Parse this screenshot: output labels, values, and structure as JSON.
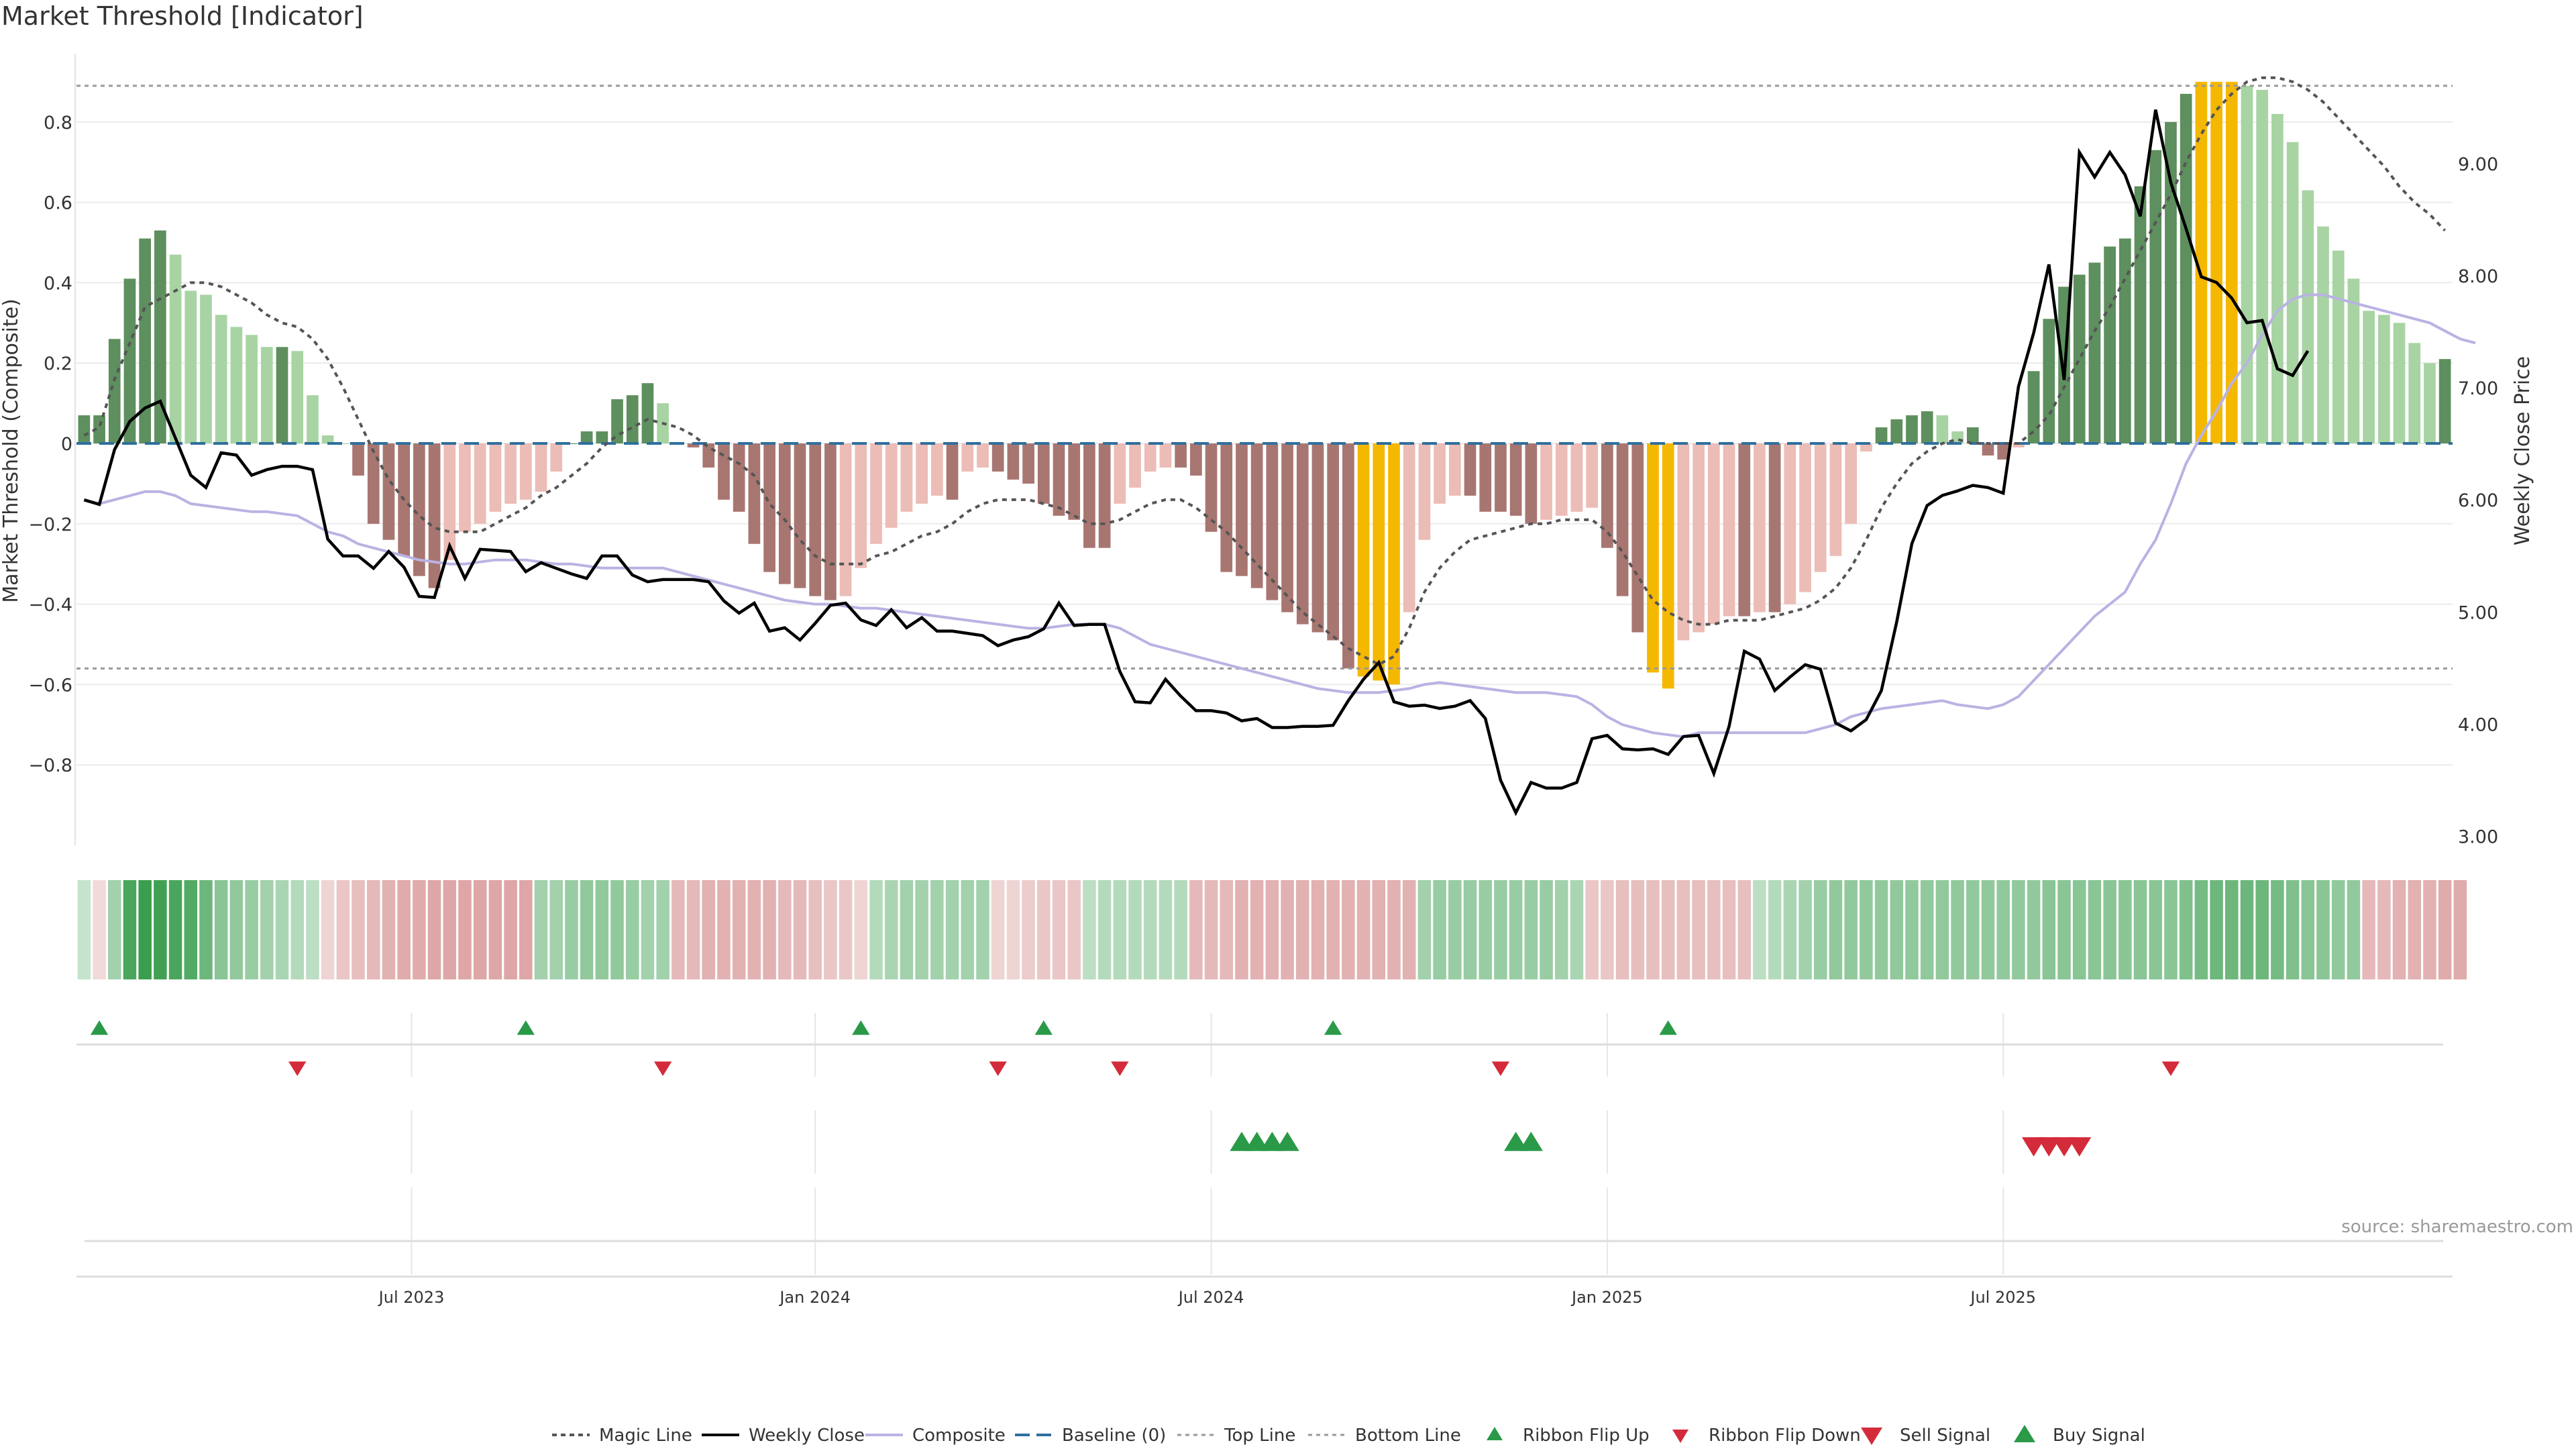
{
  "chart_data": {
    "type": "bar",
    "title": "Market Threshold [Indicator]",
    "source": "source: sharemaestro.com",
    "ylabel_left": "Market Threshold (Composite)",
    "ylabel_right": "Weekly Close Price",
    "y_left_ticks": [
      "−0.8",
      "−0.6",
      "−0.4",
      "−0.2",
      "0",
      "0.2",
      "0.4",
      "0.6",
      "0.8"
    ],
    "y_left_tick_values": [
      -0.8,
      -0.6,
      -0.4,
      -0.2,
      0,
      0.2,
      0.4,
      0.6,
      0.8
    ],
    "y_right_ticks": [
      "3.00",
      "4.00",
      "5.00",
      "6.00",
      "7.00",
      "8.00",
      "9.00"
    ],
    "y_right_tick_values": [
      3,
      4,
      5,
      6,
      7,
      8,
      9
    ],
    "ylim_left": [
      -1.0,
      0.97
    ],
    "ylim_right": [
      2.92,
      9.98
    ],
    "x_ticks": [
      "Jul 2023",
      "Jan 2024",
      "Jul 2024",
      "Jan 2025",
      "Jul 2025"
    ],
    "x_tick_week_index": [
      22,
      48.5,
      74.5,
      100.5,
      126.5
    ],
    "top_line": 0.89,
    "bottom_line": -0.56,
    "composite": [
      0.07,
      0.07,
      0.26,
      0.41,
      0.51,
      0.53,
      0.47,
      0.38,
      0.37,
      0.32,
      0.29,
      0.27,
      0.24,
      0.24,
      0.23,
      0.12,
      0.02,
      0,
      -0.08,
      -0.2,
      -0.24,
      -0.28,
      -0.33,
      -0.36,
      -0.29,
      -0.22,
      -0.2,
      -0.17,
      -0.15,
      -0.14,
      -0.12,
      -0.07,
      0,
      0.03,
      0.03,
      0.11,
      0.12,
      0.15,
      0.1,
      0,
      -0.01,
      -0.06,
      -0.14,
      -0.17,
      -0.25,
      -0.32,
      -0.35,
      -0.36,
      -0.38,
      -0.39,
      -0.38,
      -0.31,
      -0.25,
      -0.21,
      -0.17,
      -0.15,
      -0.13,
      -0.14,
      -0.07,
      -0.06,
      -0.07,
      -0.09,
      -0.1,
      -0.15,
      -0.18,
      -0.19,
      -0.26,
      -0.26,
      -0.15,
      -0.11,
      -0.07,
      -0.06,
      -0.06,
      -0.08,
      -0.22,
      -0.32,
      -0.33,
      -0.36,
      -0.39,
      -0.42,
      -0.45,
      -0.47,
      -0.49,
      -0.56,
      -0.58,
      -0.59,
      -0.6,
      -0.42,
      -0.24,
      -0.15,
      -0.13,
      -0.13,
      -0.17,
      -0.17,
      -0.18,
      -0.2,
      -0.19,
      -0.18,
      -0.17,
      -0.16,
      -0.26,
      -0.38,
      -0.47,
      -0.57,
      -0.61,
      -0.49,
      -0.47,
      -0.45,
      -0.43,
      -0.43,
      -0.42,
      -0.42,
      -0.4,
      -0.37,
      -0.32,
      -0.28,
      -0.2,
      -0.02,
      0.04,
      0.06,
      0.07,
      0.08,
      0.07,
      0.03,
      0.04,
      -0.03,
      -0.04,
      -0.01,
      0.18,
      0.31,
      0.39,
      0.42,
      0.45,
      0.49,
      0.51,
      0.64,
      0.73,
      0.8,
      0.87,
      0.9,
      0.9,
      0.9,
      0.89,
      0.88,
      0.82,
      0.75,
      0.63,
      0.54,
      0.48,
      0.41,
      0.33,
      0.32,
      0.3,
      0.25,
      0.2,
      0.21
    ],
    "weekly_close": [
      6.0,
      5.96,
      6.45,
      6.7,
      6.82,
      6.88,
      6.55,
      6.22,
      6.11,
      6.42,
      6.4,
      6.22,
      6.27,
      6.3,
      6.3,
      6.27,
      5.65,
      5.5,
      5.5,
      5.39,
      5.54,
      5.4,
      5.14,
      5.13,
      5.59,
      5.3,
      5.56,
      5.55,
      5.54,
      5.36,
      5.44,
      5.39,
      5.34,
      5.3,
      5.5,
      5.5,
      5.33,
      5.27,
      5.29,
      5.29,
      5.29,
      5.27,
      5.1,
      4.99,
      5.08,
      4.83,
      4.86,
      4.75,
      4.9,
      5.06,
      5.08,
      4.93,
      4.88,
      5.02,
      4.86,
      4.95,
      4.83,
      4.83,
      4.81,
      4.79,
      4.7,
      4.75,
      4.78,
      4.85,
      5.08,
      4.88,
      4.89,
      4.89,
      4.47,
      4.2,
      4.19,
      4.4,
      4.25,
      4.12,
      4.12,
      4.1,
      4.03,
      4.05,
      3.97,
      3.97,
      3.98,
      3.98,
      3.99,
      4.21,
      4.4,
      4.55,
      4.2,
      4.16,
      4.17,
      4.14,
      4.16,
      4.21,
      4.05,
      3.5,
      3.21,
      3.48,
      3.43,
      3.43,
      3.48,
      3.87,
      3.9,
      3.78,
      3.77,
      3.78,
      3.73,
      3.89,
      3.9,
      3.56,
      3.98,
      4.65,
      4.58,
      4.3,
      4.42,
      4.53,
      4.49,
      4.01,
      3.94,
      4.04,
      4.3,
      4.91,
      5.61,
      5.95,
      6.04,
      6.08,
      6.13,
      6.11,
      6.06,
      7.01,
      7.49,
      8.1,
      7.07,
      9.1,
      8.88,
      9.1,
      8.9,
      8.53,
      9.48,
      8.83,
      8.42,
      7.99,
      7.94,
      7.8,
      7.58,
      7.6,
      7.17,
      7.11,
      7.33
    ],
    "magic_line": [
      0.02,
      0.04,
      0.16,
      0.25,
      0.34,
      0.36,
      0.38,
      0.4,
      0.4,
      0.39,
      0.37,
      0.35,
      0.32,
      0.3,
      0.29,
      0.26,
      0.21,
      0.14,
      0.06,
      -0.02,
      -0.09,
      -0.14,
      -0.18,
      -0.21,
      -0.22,
      -0.22,
      -0.22,
      -0.2,
      -0.18,
      -0.16,
      -0.13,
      -0.11,
      -0.08,
      -0.05,
      -0.01,
      0.02,
      0.04,
      0.06,
      0.05,
      0.04,
      0.02,
      -0.01,
      -0.03,
      -0.05,
      -0.08,
      -0.15,
      -0.19,
      -0.24,
      -0.28,
      -0.3,
      -0.3,
      -0.3,
      -0.28,
      -0.27,
      -0.25,
      -0.23,
      -0.22,
      -0.2,
      -0.17,
      -0.15,
      -0.14,
      -0.14,
      -0.14,
      -0.15,
      -0.16,
      -0.18,
      -0.2,
      -0.2,
      -0.19,
      -0.17,
      -0.15,
      -0.14,
      -0.14,
      -0.16,
      -0.19,
      -0.22,
      -0.26,
      -0.3,
      -0.34,
      -0.38,
      -0.42,
      -0.45,
      -0.48,
      -0.51,
      -0.53,
      -0.55,
      -0.53,
      -0.46,
      -0.37,
      -0.31,
      -0.27,
      -0.24,
      -0.23,
      -0.22,
      -0.21,
      -0.2,
      -0.2,
      -0.19,
      -0.19,
      -0.19,
      -0.22,
      -0.27,
      -0.33,
      -0.39,
      -0.42,
      -0.44,
      -0.45,
      -0.45,
      -0.44,
      -0.44,
      -0.44,
      -0.43,
      -0.42,
      -0.41,
      -0.39,
      -0.36,
      -0.31,
      -0.24,
      -0.16,
      -0.1,
      -0.05,
      -0.02,
      0,
      0.01,
      0,
      0,
      0,
      0,
      0.03,
      0.07,
      0.14,
      0.21,
      0.28,
      0.34,
      0.41,
      0.48,
      0.55,
      0.62,
      0.7,
      0.77,
      0.83,
      0.87,
      0.9,
      0.91,
      0.91,
      0.9,
      0.88,
      0.85,
      0.81,
      0.77,
      0.73,
      0.69,
      0.64,
      0.6,
      0.57,
      0.53
    ],
    "composite_line": [
      -0.14,
      -0.15,
      -0.14,
      -0.13,
      -0.12,
      -0.12,
      -0.13,
      -0.15,
      -0.155,
      -0.16,
      -0.165,
      -0.17,
      -0.17,
      -0.175,
      -0.18,
      -0.2,
      -0.22,
      -0.23,
      -0.25,
      -0.26,
      -0.27,
      -0.28,
      -0.29,
      -0.295,
      -0.3,
      -0.3,
      -0.295,
      -0.29,
      -0.29,
      -0.29,
      -0.295,
      -0.3,
      -0.3,
      -0.305,
      -0.31,
      -0.31,
      -0.31,
      -0.31,
      -0.31,
      -0.32,
      -0.33,
      -0.34,
      -0.35,
      -0.36,
      -0.37,
      -0.38,
      -0.39,
      -0.395,
      -0.4,
      -0.4,
      -0.405,
      -0.41,
      -0.41,
      -0.415,
      -0.42,
      -0.425,
      -0.43,
      -0.435,
      -0.44,
      -0.445,
      -0.45,
      -0.455,
      -0.46,
      -0.46,
      -0.455,
      -0.45,
      -0.45,
      -0.45,
      -0.46,
      -0.48,
      -0.5,
      -0.51,
      -0.52,
      -0.53,
      -0.54,
      -0.55,
      -0.56,
      -0.57,
      -0.58,
      -0.59,
      -0.6,
      -0.61,
      -0.615,
      -0.62,
      -0.62,
      -0.62,
      -0.615,
      -0.61,
      -0.6,
      -0.595,
      -0.6,
      -0.605,
      -0.61,
      -0.615,
      -0.62,
      -0.62,
      -0.62,
      -0.625,
      -0.63,
      -0.65,
      -0.68,
      -0.7,
      -0.71,
      -0.72,
      -0.725,
      -0.73,
      -0.72,
      -0.72,
      -0.72,
      -0.72,
      -0.72,
      -0.72,
      -0.72,
      -0.72,
      -0.71,
      -0.7,
      -0.68,
      -0.67,
      -0.66,
      -0.655,
      -0.65,
      -0.645,
      -0.64,
      -0.65,
      -0.655,
      -0.66,
      -0.65,
      -0.63,
      -0.59,
      -0.55,
      -0.51,
      -0.47,
      -0.43,
      -0.4,
      -0.37,
      -0.3,
      -0.24,
      -0.15,
      -0.05,
      0.02,
      0.08,
      0.15,
      0.2,
      0.27,
      0.33,
      0.36,
      0.37,
      0.37,
      0.36,
      0.35,
      0.34,
      0.33,
      0.32,
      0.31,
      0.3,
      0.28,
      0.26,
      0.25
    ],
    "ribbon": [
      0.1,
      -0.05,
      0.3,
      0.8,
      0.9,
      0.85,
      0.8,
      0.75,
      0.6,
      0.45,
      0.4,
      0.35,
      0.3,
      0.25,
      0.2,
      0.15,
      -0.1,
      -0.2,
      -0.25,
      -0.3,
      -0.35,
      -0.4,
      -0.4,
      -0.45,
      -0.45,
      -0.45,
      -0.45,
      -0.45,
      -0.45,
      -0.45,
      0.3,
      0.3,
      0.35,
      0.4,
      0.4,
      0.4,
      0.35,
      0.3,
      0.3,
      -0.3,
      -0.3,
      -0.35,
      -0.35,
      -0.35,
      -0.35,
      -0.35,
      -0.3,
      -0.3,
      -0.25,
      -0.2,
      -0.2,
      -0.1,
      0.2,
      0.25,
      0.3,
      0.3,
      0.3,
      0.3,
      0.3,
      0.3,
      -0.1,
      -0.1,
      -0.15,
      -0.2,
      -0.2,
      -0.2,
      0.15,
      0.2,
      0.2,
      0.2,
      0.2,
      0.2,
      0.2,
      -0.3,
      -0.3,
      -0.3,
      -0.35,
      -0.35,
      -0.35,
      -0.35,
      -0.35,
      -0.35,
      -0.35,
      -0.35,
      -0.35,
      -0.35,
      -0.35,
      -0.35,
      0.3,
      0.35,
      0.35,
      0.35,
      0.35,
      0.35,
      0.35,
      0.35,
      0.35,
      0.3,
      0.25,
      -0.2,
      -0.2,
      -0.25,
      -0.25,
      -0.25,
      -0.25,
      -0.25,
      -0.25,
      -0.25,
      -0.25,
      -0.25,
      0.15,
      0.2,
      0.25,
      0.3,
      0.35,
      0.4,
      0.4,
      0.4,
      0.4,
      0.4,
      0.4,
      0.4,
      0.4,
      0.4,
      0.4,
      0.4,
      0.4,
      0.4,
      0.4,
      0.45,
      0.45,
      0.45,
      0.45,
      0.45,
      0.45,
      0.45,
      0.45,
      0.45,
      0.5,
      0.55,
      0.6,
      0.6,
      0.6,
      0.6,
      0.55,
      0.5,
      0.45,
      0.45,
      0.4,
      0.4,
      -0.3,
      -0.3,
      -0.35,
      -0.35,
      -0.35,
      -0.4,
      -0.4
    ],
    "ribbon_flip_up_weeks": [
      1,
      29,
      51,
      63,
      82,
      104
    ],
    "ribbon_flip_down_weeks": [
      14,
      38,
      60,
      68,
      93,
      137
    ],
    "buy_signal_weeks": [
      76,
      77,
      78,
      79,
      94,
      95
    ],
    "sell_signal_weeks": [
      128,
      129,
      130,
      131
    ],
    "legend": [
      "Magic Line",
      "Weekly Close",
      "Composite",
      "Baseline (0)",
      "Top Line",
      "Bottom Line",
      "Ribbon Flip Up",
      "Ribbon Flip Down",
      "Sell Signal",
      "Buy Signal"
    ],
    "colors": {
      "bar_pos_strong": "#5e8f5e",
      "bar_pos_light": "#a8d4a3",
      "bar_neg_strong": "#a87671",
      "bar_neg_light": "#ecbcb6",
      "bar_extreme": "#f5b800",
      "weekly_close": "#000000",
      "magic_line": "#555555",
      "composite_line": "#b9b3e3",
      "baseline": "#2e6f9e",
      "guide_line": "#999999",
      "ribbon_pos": "#3a9e4e",
      "ribbon_neg": "#c86a6a",
      "signal_up": "#2b9a48",
      "signal_down": "#d42b3a"
    }
  }
}
